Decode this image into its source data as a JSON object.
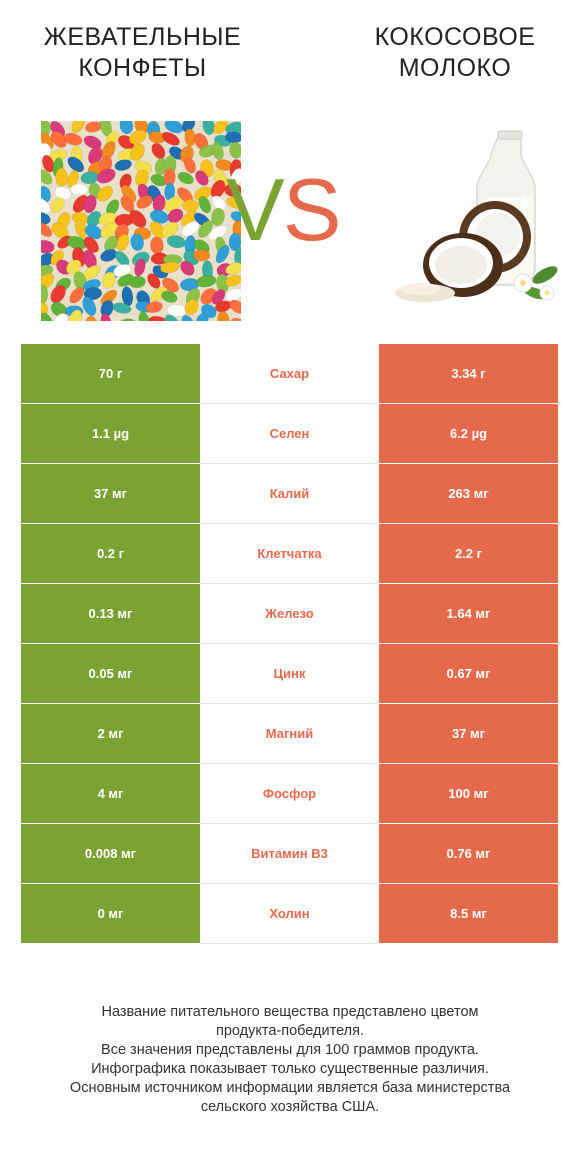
{
  "header": {
    "left_title": "ЖЕВАТЕЛЬНЫЕ\nКОНФЕТЫ",
    "right_title": "КОКОСОВОЕ\nМОЛОКО",
    "vs_v": "V",
    "vs_s": "S"
  },
  "colors": {
    "left": "#7aa334",
    "right": "#e56a4c",
    "winner_left": "#7aa334",
    "winner_right": "#e56a4c"
  },
  "rows": [
    {
      "left": "70 г",
      "name": "Сахар",
      "right": "3.34 г",
      "winner": "right"
    },
    {
      "left": "1.1 µg",
      "name": "Селен",
      "right": "6.2 µg",
      "winner": "right"
    },
    {
      "left": "37 мг",
      "name": "Калий",
      "right": "263 мг",
      "winner": "right"
    },
    {
      "left": "0.2 г",
      "name": "Клетчатка",
      "right": "2.2 г",
      "winner": "right"
    },
    {
      "left": "0.13 мг",
      "name": "Железо",
      "right": "1.64 мг",
      "winner": "right"
    },
    {
      "left": "0.05 мг",
      "name": "Цинк",
      "right": "0.67 мг",
      "winner": "right"
    },
    {
      "left": "2 мг",
      "name": "Магний",
      "right": "37 мг",
      "winner": "right"
    },
    {
      "left": "4 мг",
      "name": "Фосфор",
      "right": "100 мг",
      "winner": "right"
    },
    {
      "left": "0.008 мг",
      "name": "Витамин B3",
      "right": "0.76 мг",
      "winner": "right"
    },
    {
      "left": "0 мг",
      "name": "Холин",
      "right": "8.5 мг",
      "winner": "right"
    }
  ],
  "footer": {
    "line1": "Название питательного вещества представлено цветом",
    "line2": "продукта-победителя.",
    "line3": "Все значения представлены для 100 граммов продукта.",
    "line4": "Инфографика показывает только существенные различия.",
    "line5": "Основным источником информации является база министерства",
    "line6": "сельского хозяйства США."
  }
}
